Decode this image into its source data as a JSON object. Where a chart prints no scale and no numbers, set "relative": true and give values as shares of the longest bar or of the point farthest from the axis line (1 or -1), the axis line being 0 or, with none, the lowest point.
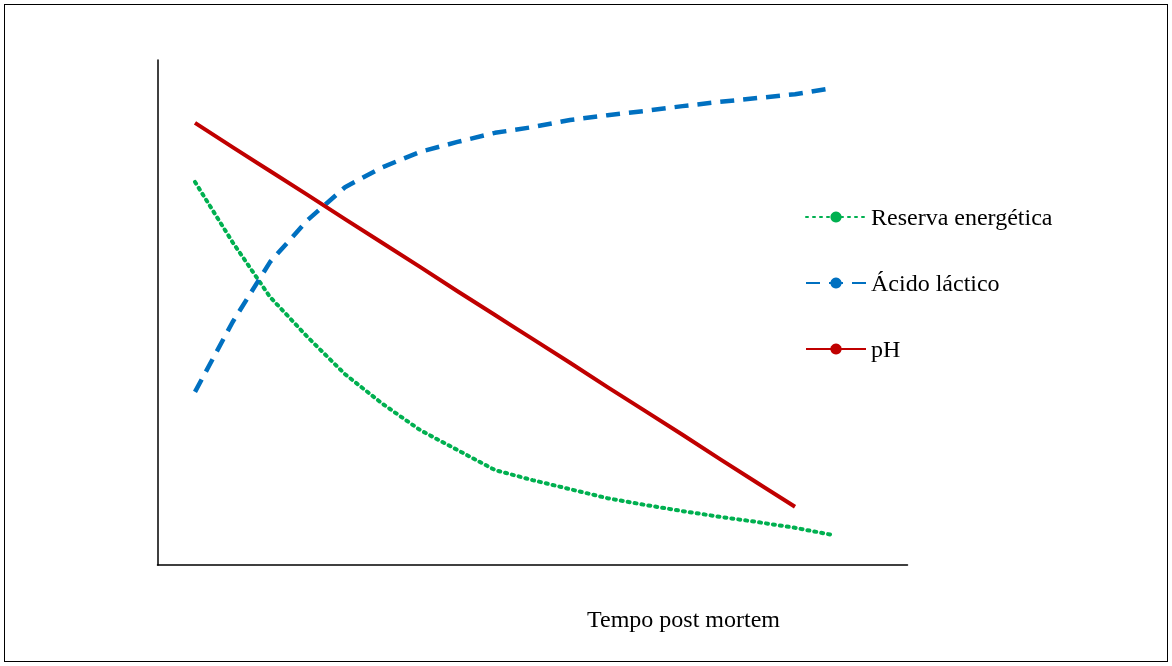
{
  "chart_data": {
    "type": "line",
    "relative": true,
    "xlabel": "Tempo post mortem",
    "legend": "right",
    "marker": "none",
    "categories": [
      null,
      null,
      null,
      null,
      null,
      null,
      null,
      null,
      null,
      null,
      null,
      null,
      null,
      null,
      null,
      null,
      null,
      null,
      null,
      null,
      null
    ],
    "series": [
      {
        "name": "Reserva energética",
        "color": "#00b050",
        "line_style": "dotted",
        "values": [
          null,
          0.803,
          0.677,
          0.562,
          0.478,
          0.4,
          0.338,
          0.283,
          0.241,
          0.199,
          0.178,
          0.159,
          0.14,
          0.126,
          0.113,
          0.101,
          0.09,
          0.078,
          0.063,
          null,
          null
        ]
      },
      {
        "name": "Ácido láctico",
        "color": "#0070c0",
        "line_style": "dashed",
        "values": [
          null,
          0.363,
          0.509,
          0.635,
          0.723,
          0.792,
          0.834,
          0.866,
          0.887,
          0.906,
          0.918,
          0.933,
          0.943,
          0.952,
          0.962,
          0.971,
          0.979,
          0.987,
          1.0,
          null,
          null
        ]
      },
      {
        "name": "pH",
        "color": "#c00000",
        "line_style": "solid",
        "values": [
          null,
          0.927,
          0.876,
          0.826,
          0.776,
          0.725,
          0.675,
          0.625,
          0.574,
          0.524,
          0.474,
          0.424,
          0.373,
          0.323,
          0.273,
          0.222,
          0.172,
          0.122,
          null,
          null,
          null
        ]
      }
    ]
  }
}
